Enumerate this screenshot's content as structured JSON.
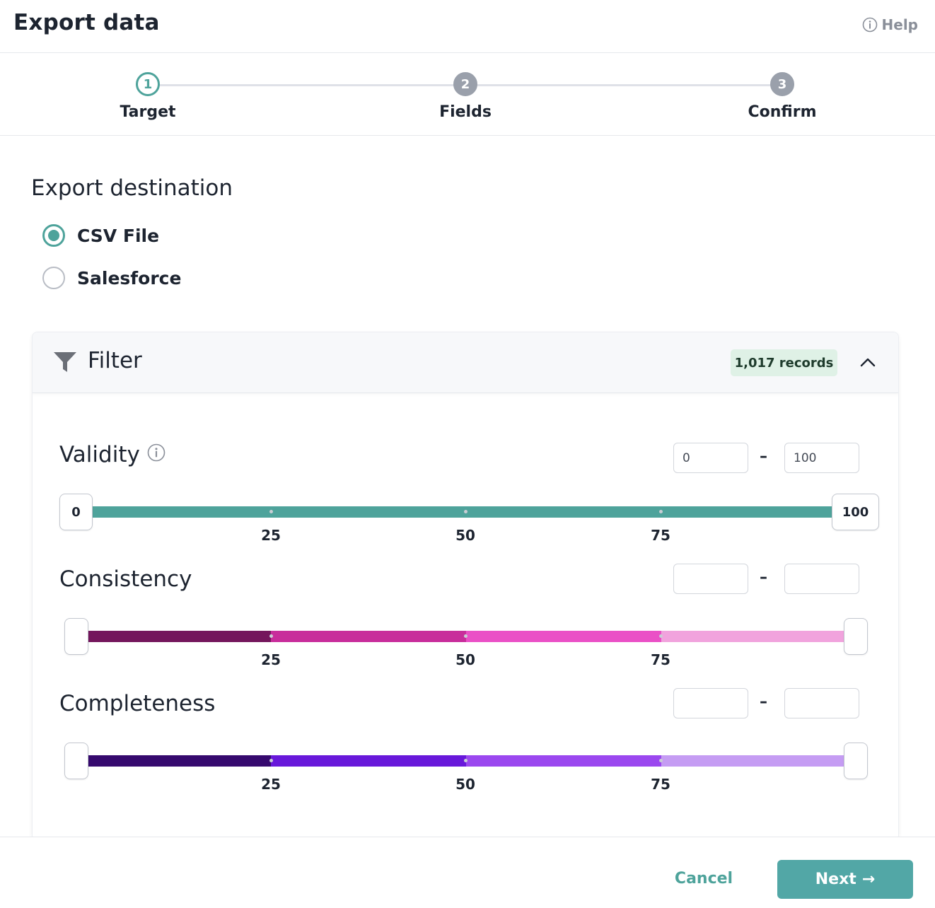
{
  "header": {
    "title": "Export data",
    "help_label": "Help"
  },
  "stepper": {
    "steps": [
      {
        "number": "1",
        "label": "Target",
        "state": "active"
      },
      {
        "number": "2",
        "label": "Fields",
        "state": "inactive"
      },
      {
        "number": "3",
        "label": "Confirm",
        "state": "inactive"
      }
    ]
  },
  "destination": {
    "title": "Export destination",
    "options": [
      {
        "label": "CSV File",
        "selected": true
      },
      {
        "label": "Salesforce",
        "selected": false
      }
    ]
  },
  "filter": {
    "title": "Filter",
    "records_badge": "1,017 records",
    "sliders": [
      {
        "label": "Validity",
        "has_info_icon": true,
        "min_value": "0",
        "max_value": "100",
        "handle_min_label": "0",
        "handle_max_label": "100",
        "ticks": [
          "25",
          "50",
          "75"
        ],
        "colors": [
          "#4ea39b",
          "#4ea39b",
          "#4ea39b",
          "#4ea39b"
        ]
      },
      {
        "label": "Consistency",
        "has_info_icon": false,
        "min_value": "",
        "max_value": "",
        "handle_min_label": "",
        "handle_max_label": "",
        "ticks": [
          "25",
          "50",
          "75"
        ],
        "colors": [
          "#74165c",
          "#c82d9b",
          "#ea50c6",
          "#f1a3dd"
        ]
      },
      {
        "label": "Completeness",
        "has_info_icon": false,
        "min_value": "",
        "max_value": "",
        "handle_min_label": "",
        "handle_max_label": "",
        "ticks": [
          "25",
          "50",
          "75"
        ],
        "colors": [
          "#36096e",
          "#6818da",
          "#9b48ef",
          "#c59cf3"
        ]
      }
    ],
    "range_separator": "–"
  },
  "footer": {
    "cancel_label": "Cancel",
    "next_label": "Next",
    "next_arrow": "→"
  }
}
